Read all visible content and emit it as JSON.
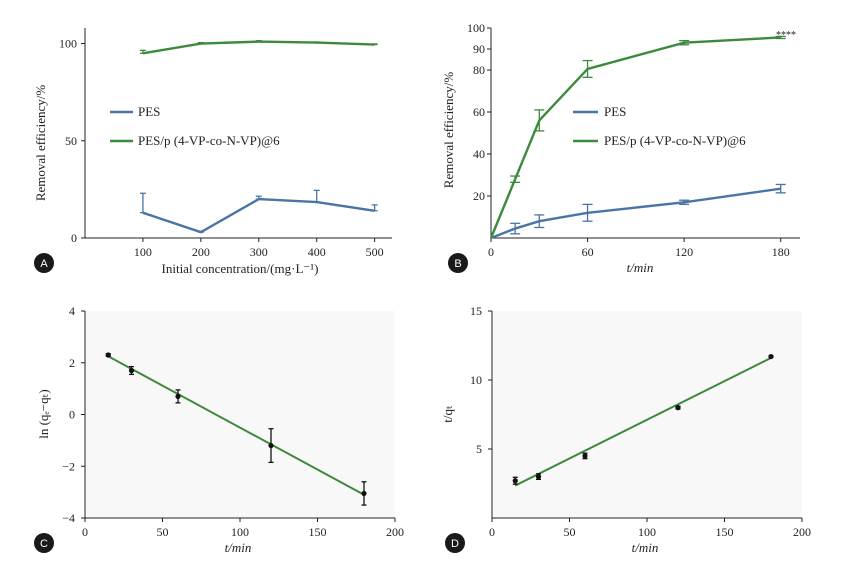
{
  "colors": {
    "pes": "#4a74a6",
    "pesp": "#3d8a3d",
    "fit": "#3d8a3d",
    "axis": "#222222",
    "badge": "#1a1a1a",
    "point": "#111111"
  },
  "chart_data": [
    {
      "panel": "A",
      "type": "line",
      "xlabel": "Initial concentration/(mg·L⁻¹)",
      "ylabel": "Removal efficiency/%",
      "x": [
        100,
        200,
        300,
        400,
        500
      ],
      "xticks": [
        100,
        200,
        300,
        400,
        500
      ],
      "yticks": [
        0,
        50,
        100
      ],
      "xlim": [
        0,
        530
      ],
      "ylim": [
        0,
        108
      ],
      "legend": [
        "PES",
        "PES/p (4-VP-co-N-VP)@6"
      ],
      "series": [
        {
          "name": "PES",
          "color": "#4a74a6",
          "values": [
            13,
            3,
            20,
            18.5,
            14
          ],
          "errors": [
            10,
            0.5,
            1.5,
            6,
            3
          ]
        },
        {
          "name": "PES/p (4-VP-co-N-VP)@6",
          "color": "#3d8a3d",
          "values": [
            95,
            100,
            101,
            100.5,
            99.5
          ],
          "errors": [
            1.5,
            0.5,
            0.5,
            0.3,
            0.3
          ]
        }
      ]
    },
    {
      "panel": "B",
      "type": "line",
      "xlabel": "t/min",
      "ylabel": "Removal efficiency/%",
      "x": [
        0,
        15,
        30,
        60,
        120,
        180
      ],
      "xticks": [
        0,
        60,
        120,
        180
      ],
      "yticks": [
        20,
        40,
        60,
        80,
        90,
        100
      ],
      "xlim": [
        0,
        192
      ],
      "ylim": [
        0,
        100
      ],
      "annotation": "****",
      "legend": [
        "PES",
        "PES/p (4-VP-co-N-VP)@6"
      ],
      "series": [
        {
          "name": "PES",
          "color": "#4a74a6",
          "values": [
            0,
            4.5,
            8,
            12,
            17,
            23.5
          ],
          "errors": [
            0,
            2.5,
            3,
            4,
            1,
            2
          ]
        },
        {
          "name": "PES/p (4-VP-co-N-VP)@6",
          "color": "#3d8a3d",
          "values": [
            0,
            28,
            56,
            80.5,
            93,
            95.5
          ],
          "errors": [
            0,
            1.5,
            5,
            4,
            1,
            0.5
          ]
        }
      ]
    },
    {
      "panel": "C",
      "type": "scatter",
      "xlabel": "t/min",
      "ylabel": "ln (qₑ−qₜ)",
      "xticks": [
        0,
        50,
        100,
        150,
        200
      ],
      "yticks": [
        -4,
        -2,
        0,
        2,
        4
      ],
      "xlim": [
        0,
        200
      ],
      "ylim": [
        -4,
        4
      ],
      "points": {
        "x": [
          15,
          30,
          60,
          120,
          180
        ],
        "y": [
          2.3,
          1.7,
          0.7,
          -1.2,
          -3.05
        ],
        "errors": [
          0.05,
          0.15,
          0.25,
          0.65,
          0.45
        ]
      },
      "fit": {
        "x": [
          15,
          180
        ],
        "y": [
          2.25,
          -3.1
        ]
      }
    },
    {
      "panel": "D",
      "type": "scatter",
      "xlabel": "t/min",
      "ylabel": "t/qₜ",
      "xticks": [
        0,
        50,
        100,
        150,
        200
      ],
      "yticks": [
        5,
        10,
        15
      ],
      "xlim": [
        0,
        200
      ],
      "ylim": [
        0,
        15
      ],
      "points": {
        "x": [
          15,
          30,
          60,
          120,
          180
        ],
        "y": [
          2.7,
          3.0,
          4.5,
          8.0,
          11.7
        ],
        "errors": [
          0.25,
          0.2,
          0.2,
          0.1,
          0.05
        ]
      },
      "fit": {
        "x": [
          15,
          180
        ],
        "y": [
          2.35,
          11.6
        ]
      }
    }
  ]
}
